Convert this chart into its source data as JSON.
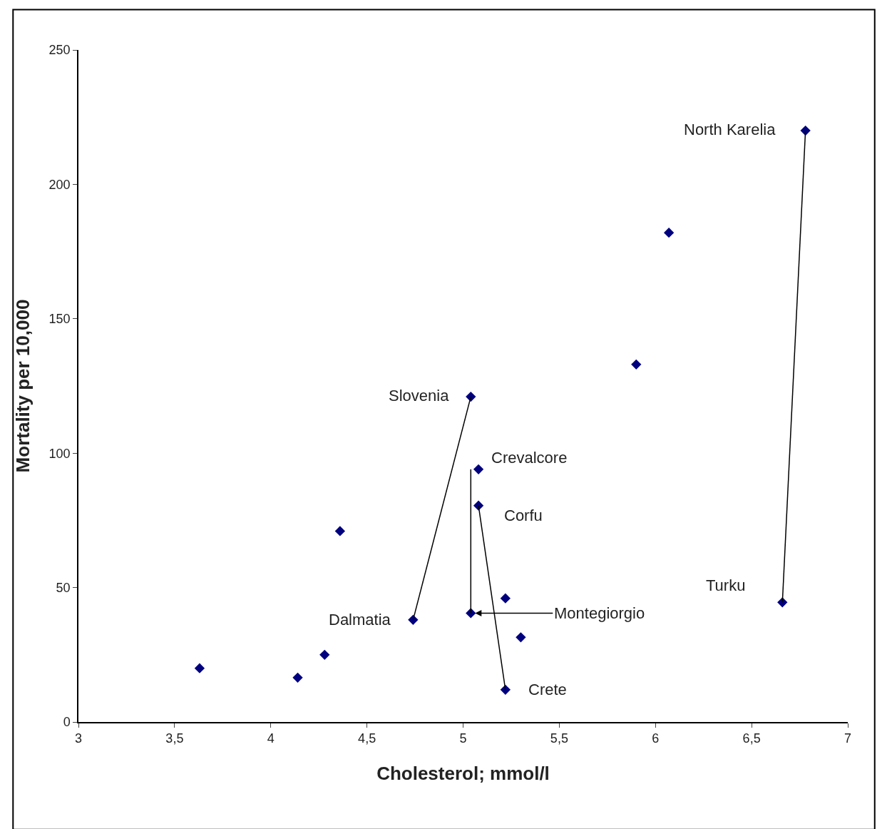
{
  "chart_data": {
    "type": "scatter",
    "xlabel": "Cholesterol; mmol/l",
    "ylabel": "Mortality per 10,000",
    "x": [
      3.63,
      4.14,
      4.28,
      4.36,
      4.74,
      5.04,
      5.08,
      5.08,
      5.04,
      5.22,
      5.3,
      5.22,
      5.9,
      6.07,
      6.78,
      6.66
    ],
    "series": [
      {
        "color": "#00007f",
        "values": [
          20,
          16.5,
          25,
          71,
          38,
          121,
          94,
          80.5,
          40.5,
          46,
          31.5,
          12,
          133,
          182,
          220,
          44.5
        ]
      },
      {
        "type": "line",
        "marker": "none",
        "color": "#000000",
        "x": [
          6.78,
          6.66
        ],
        "values": [
          220,
          44.5
        ]
      },
      {
        "type": "line",
        "marker": "none",
        "color": "#000000",
        "x": [
          5.04,
          4.74
        ],
        "values": [
          121,
          38
        ]
      },
      {
        "type": "line",
        "marker": "none",
        "color": "#000000",
        "x": [
          5.08,
          5.22
        ],
        "values": [
          80.5,
          12
        ]
      },
      {
        "type": "line",
        "marker": "none",
        "color": "#000000",
        "x": [
          5.04,
          5.04
        ],
        "values": [
          94,
          40.5
        ]
      }
    ],
    "annotations": [
      {
        "text": "North Karelia",
        "x": 6.78,
        "y": 220
      },
      {
        "text": "Slovenia",
        "x": 5.04,
        "y": 121
      },
      {
        "text": "Crevalcore",
        "x": 5.08,
        "y": 94
      },
      {
        "text": "Corfu",
        "x": 5.08,
        "y": 80.5
      },
      {
        "text": "Turku",
        "x": 6.66,
        "y": 44.5
      },
      {
        "text": "Dalmatia",
        "x": 4.74,
        "y": 38
      },
      {
        "text": "Montegiorgio",
        "x": 5.04,
        "y": 40.5
      },
      {
        "text": "Crete",
        "x": 5.22,
        "y": 12
      }
    ],
    "xlim": [
      3,
      7
    ],
    "ylim": [
      0,
      250
    ],
    "xticks": [
      3,
      {
        "value": 3.5,
        "label": "3,5"
      },
      4,
      {
        "value": 4.5,
        "label": "4,5"
      },
      5,
      {
        "value": 5.5,
        "label": "5,5"
      },
      6,
      {
        "value": 6.5,
        "label": "6,5"
      },
      7
    ],
    "yticks": [
      0,
      50,
      100,
      150,
      200,
      250
    ],
    "marker": "diamond",
    "line_style": "solid"
  }
}
